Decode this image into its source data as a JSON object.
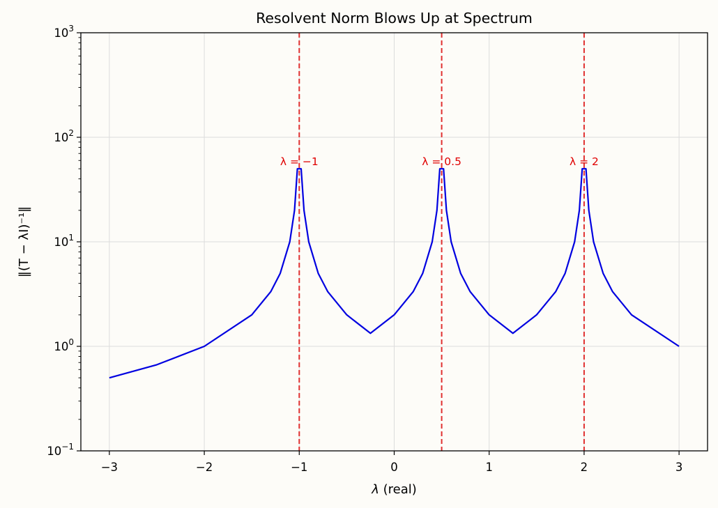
{
  "chart_data": {
    "type": "line",
    "title": "Resolvent Norm Blows Up at Spectrum",
    "xlabel": {
      "symbol": "λ",
      "text": " (real)"
    },
    "ylabel": "‖(T − λI)⁻¹‖",
    "xlim": [
      -3.3,
      3.3
    ],
    "ylim": [
      0.1,
      1000
    ],
    "yscale": "log",
    "grid": true,
    "x_ticks": [
      -3,
      -2,
      -1,
      0,
      1,
      2,
      3
    ],
    "x_tick_labels": [
      "−3",
      "−2",
      "−1",
      "0",
      "1",
      "2",
      "3"
    ],
    "y_ticks": [
      0.1,
      1,
      10,
      100,
      1000
    ],
    "y_tick_labels": [
      {
        "base": "10",
        "exp": "−1"
      },
      {
        "base": "10",
        "exp": "0"
      },
      {
        "base": "10",
        "exp": "1"
      },
      {
        "base": "10",
        "exp": "2"
      },
      {
        "base": "10",
        "exp": "3"
      }
    ],
    "series": [
      {
        "color": "#0000e0",
        "x": [
          -3.0,
          -2.5,
          -2.0,
          -1.5,
          -1.3,
          -1.2,
          -1.1,
          -1.05,
          -1.02,
          -1.0,
          -0.98,
          -0.95,
          -0.9,
          -0.8,
          -0.7,
          -0.5,
          -0.25,
          0.0,
          0.2,
          0.3,
          0.4,
          0.45,
          0.48,
          0.5,
          0.52,
          0.55,
          0.6,
          0.7,
          0.8,
          1.0,
          1.25,
          1.5,
          1.7,
          1.8,
          1.9,
          1.95,
          1.98,
          2.0,
          2.02,
          2.05,
          2.1,
          2.2,
          2.3,
          2.5,
          3.0
        ],
        "y": [
          0.5,
          0.667,
          1.0,
          2.0,
          3.33,
          5.0,
          10.0,
          20.0,
          50.0,
          50.0,
          50.0,
          20.0,
          10.0,
          5.0,
          3.33,
          2.0,
          1.333,
          2.0,
          3.33,
          5.0,
          10.0,
          20.0,
          50.0,
          50.0,
          50.0,
          20.0,
          10.0,
          5.0,
          3.33,
          2.0,
          1.333,
          2.0,
          3.33,
          5.0,
          10.0,
          20.0,
          50.0,
          50.0,
          50.0,
          20.0,
          10.0,
          5.0,
          3.33,
          2.0,
          1.0
        ]
      }
    ],
    "vlines": {
      "x": [
        -1,
        0.5,
        2
      ],
      "color": "#e03030",
      "style": "dashed"
    },
    "annotations": [
      {
        "x": -1,
        "y": 50,
        "text": "λ = −1",
        "color": "#e00000"
      },
      {
        "x": 0.5,
        "y": 50,
        "text": "λ = 0.5",
        "color": "#e00000"
      },
      {
        "x": 2,
        "y": 50,
        "text": "λ = 2",
        "color": "#e00000"
      }
    ]
  }
}
